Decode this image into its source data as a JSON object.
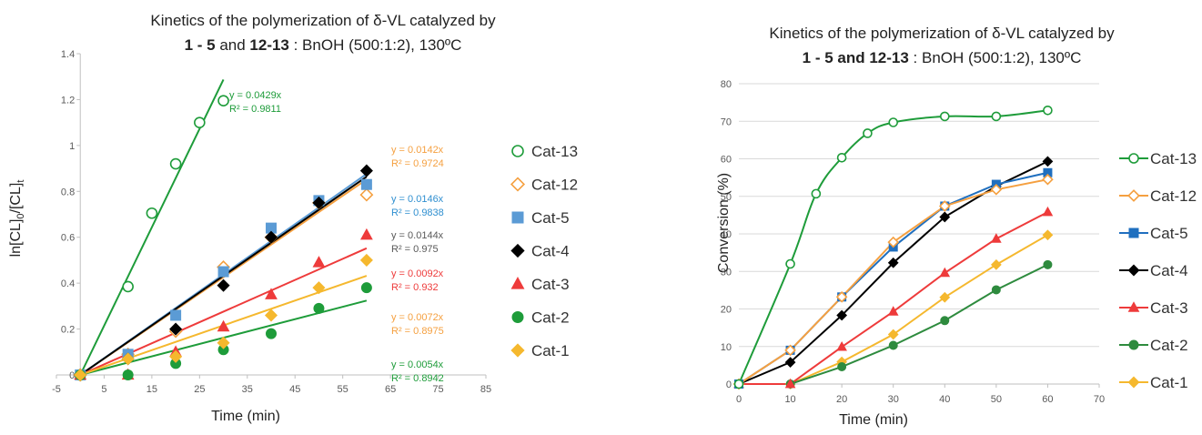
{
  "chart_data": [
    {
      "type": "scatter",
      "title_line1": "Kinetics of the polymerization of δ-VL catalyzed by",
      "title_line2_bold1": "1 - 5",
      "title_line2_mid": " and ",
      "title_line2_bold2": "12-13",
      "title_line2_rest": " : BnOH (500:1:2), 130ºC",
      "xlabel": "Time (min)",
      "ylabel_main": "ln[CL]",
      "ylabel_sub1": "0",
      "ylabel_mid": "/[CL]",
      "ylabel_sub2": "t",
      "xlim": [
        -5,
        85
      ],
      "ylim": [
        0,
        1.4
      ],
      "xticks": [
        -5,
        5,
        15,
        25,
        35,
        45,
        55,
        65,
        75,
        85
      ],
      "yticks": [
        0,
        0.2,
        0.4,
        0.6,
        0.8,
        1,
        1.2,
        1.4
      ],
      "grid": false,
      "legend_position": "right",
      "series": [
        {
          "name": "Cat-13",
          "color": "#1e9c3a",
          "marker": "circle-open",
          "x": [
            0,
            10,
            15,
            20,
            25,
            30
          ],
          "y": [
            0,
            0.385,
            0.705,
            0.92,
            1.1,
            1.195
          ],
          "trend": {
            "slope": 0.0429,
            "x_end": 30,
            "eq": "y = 0.0429x",
            "r2": "R² = 0.9811",
            "label_color": "#1e9c3a"
          }
        },
        {
          "name": "Cat-12",
          "color": "#f5a040",
          "marker": "diamond-open",
          "x": [
            0,
            10,
            20,
            30,
            40,
            50,
            60
          ],
          "y": [
            0,
            0.09,
            0.19,
            0.47,
            0.6,
            0.75,
            0.785
          ],
          "trend": {
            "slope": 0.0142,
            "x_end": 60,
            "eq": "y = 0.0142x",
            "r2": "R² = 0.9724",
            "label_color": "#f5a040"
          }
        },
        {
          "name": "Cat-5",
          "color": "#5b9bd5",
          "marker": "square",
          "x": [
            0,
            10,
            20,
            30,
            40,
            50,
            60
          ],
          "y": [
            0,
            0.09,
            0.26,
            0.45,
            0.64,
            0.76,
            0.83
          ],
          "trend": {
            "slope": 0.0146,
            "x_end": 60,
            "eq": "y = 0.0146x",
            "r2": "R² = 0.9838",
            "label_color": "#2f8fd0"
          }
        },
        {
          "name": "Cat-4",
          "color": "#000000",
          "marker": "diamond",
          "x": [
            0,
            10,
            20,
            30,
            40,
            50,
            60
          ],
          "y": [
            0,
            0.07,
            0.2,
            0.39,
            0.6,
            0.75,
            0.89
          ],
          "trend": {
            "slope": 0.0144,
            "x_end": 60,
            "eq": "y = 0.0144x",
            "r2": "R² = 0.975",
            "label_color": "#595959"
          }
        },
        {
          "name": "Cat-3",
          "color": "#ee3b3b",
          "marker": "triangle",
          "x": [
            0,
            10,
            20,
            30,
            40,
            50,
            60
          ],
          "y": [
            0,
            0.0,
            0.1,
            0.21,
            0.35,
            0.49,
            0.61
          ],
          "trend": {
            "slope": 0.0092,
            "x_end": 60,
            "eq": "y = 0.0092x",
            "r2": "R² = 0.932",
            "label_color": "#ee3b3b"
          }
        },
        {
          "name": "Cat-2",
          "color": "#1e9c3a",
          "marker": "circle",
          "x": [
            0,
            10,
            20,
            30,
            40,
            50,
            60
          ],
          "y": [
            0,
            0.0,
            0.05,
            0.11,
            0.18,
            0.29,
            0.38
          ],
          "trend": {
            "slope": 0.0054,
            "x_end": 60,
            "eq": "y = 0.0054x",
            "r2": "R² = 0.8942",
            "label_color": "#1e9c3a"
          }
        },
        {
          "name": "Cat-1",
          "color": "#f5b82e",
          "marker": "diamond",
          "x": [
            0,
            10,
            20,
            30,
            40,
            50,
            60
          ],
          "y": [
            0,
            0.07,
            0.08,
            0.14,
            0.26,
            0.38,
            0.5
          ],
          "trend": {
            "slope": 0.0072,
            "x_end": 60,
            "eq": "y = 0.0072x",
            "r2": "R² = 0.8975",
            "label_color": "#f5a040"
          }
        }
      ]
    },
    {
      "type": "line",
      "title_line1": "Kinetics of the polymerization of δ-VL catalyzed by",
      "title_line2_bold1": "1 - 5",
      "title_line2_mid": " and ",
      "title_line2_bold2": "12-13",
      "title_line2_rest": " : BnOH (500:1:2), 130ºC",
      "xlabel": "Time (min)",
      "ylabel": "Conversion (%)",
      "xlim": [
        0,
        70
      ],
      "ylim": [
        0,
        80
      ],
      "xticks": [
        0,
        10,
        20,
        30,
        40,
        50,
        60,
        70
      ],
      "yticks": [
        0,
        10,
        20,
        30,
        40,
        50,
        60,
        70,
        80
      ],
      "grid": true,
      "legend_position": "right",
      "series": [
        {
          "name": "Cat-13",
          "color": "#1e9c3a",
          "marker": "circle-open",
          "x": [
            0,
            10,
            15,
            20,
            25,
            30,
            40,
            50,
            60
          ],
          "y": [
            0,
            32,
            50.7,
            60.3,
            66.8,
            69.7,
            71.3,
            71.3,
            72.9
          ],
          "smooth": true
        },
        {
          "name": "Cat-12",
          "color": "#f5a040",
          "marker": "diamond-open",
          "x": [
            0,
            10,
            20,
            30,
            40,
            50,
            60
          ],
          "y": [
            0,
            9,
            23.2,
            37.8,
            47.4,
            51.8,
            54.5
          ]
        },
        {
          "name": "Cat-5",
          "color": "#1f6fbf",
          "marker": "square",
          "x": [
            0,
            10,
            20,
            30,
            40,
            50,
            60
          ],
          "y": [
            0,
            9,
            23.2,
            36.5,
            47.4,
            53.2,
            56.3
          ]
        },
        {
          "name": "Cat-4",
          "color": "#000000",
          "marker": "diamond",
          "x": [
            0,
            10,
            20,
            30,
            40,
            50,
            60
          ],
          "y": [
            0,
            5.8,
            18.3,
            32.3,
            44.5,
            52.7,
            59.3
          ]
        },
        {
          "name": "Cat-3",
          "color": "#ee3b3b",
          "marker": "triangle",
          "x": [
            0,
            10,
            20,
            30,
            40,
            50,
            60
          ],
          "y": [
            0,
            0,
            9.9,
            19.3,
            29.6,
            38.7,
            45.8
          ]
        },
        {
          "name": "Cat-2",
          "color": "#2e8b3e",
          "marker": "circle",
          "x": [
            0,
            10,
            20,
            30,
            40,
            50,
            60
          ],
          "y": [
            0,
            0,
            4.6,
            10.3,
            16.9,
            25.1,
            31.8
          ]
        },
        {
          "name": "Cat-1",
          "color": "#f5b82e",
          "marker": "diamond",
          "x": [
            0,
            10,
            20,
            30,
            40,
            50,
            60
          ],
          "y": [
            0,
            0,
            5.9,
            13.2,
            23.1,
            31.8,
            39.7
          ]
        }
      ]
    }
  ]
}
